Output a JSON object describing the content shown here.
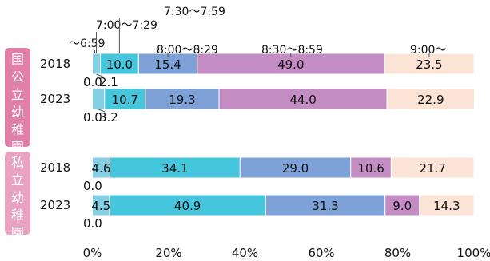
{
  "chart_data": {
    "type": "bar",
    "orientation": "horizontal",
    "stacked": true,
    "xlim": [
      0,
      100
    ],
    "x_ticks": [
      "0%",
      "20%",
      "40%",
      "60%",
      "80%",
      "100%"
    ],
    "legend_labels": [
      "～6:59",
      "7:00～7:29",
      "7:30～7:59",
      "8:00～8:29",
      "8:30～8:59",
      "9:00～"
    ],
    "colors": [
      "#5dbd8d",
      "#84cfe3",
      "#45c6dd",
      "#7ea2d8",
      "#c38cc3",
      "#fbe4d6"
    ],
    "groups": [
      {
        "name": "国公立幼稚園",
        "color": "#e07fa8",
        "rows": [
          {
            "label": "2018",
            "values": [
              0.0,
              2.1,
              10.0,
              15.4,
              49.0,
              23.5
            ],
            "display": [
              "0.0",
              "2.1",
              "10.0",
              "15.4",
              "49.0",
              "23.5"
            ]
          },
          {
            "label": "2023",
            "values": [
              0.0,
              3.2,
              10.7,
              19.3,
              44.0,
              22.9
            ],
            "display": [
              "0.0",
              "3.2",
              "10.7",
              "19.3",
              "44.0",
              "22.9"
            ]
          }
        ]
      },
      {
        "name": "私立幼稚園",
        "color": "#e8a3c3",
        "rows": [
          {
            "label": "2018",
            "values": [
              0.0,
              4.6,
              34.1,
              29.0,
              10.6,
              21.7
            ],
            "display": [
              "0.0",
              "4.6",
              "34.1",
              "29.0",
              "10.6",
              "21.7"
            ]
          },
          {
            "label": "2023",
            "values": [
              0.0,
              4.5,
              40.9,
              31.3,
              9.0,
              14.3
            ],
            "display": [
              "0.0",
              "4.5",
              "40.9",
              "31.3",
              "9.0",
              "14.3"
            ]
          }
        ]
      }
    ]
  }
}
